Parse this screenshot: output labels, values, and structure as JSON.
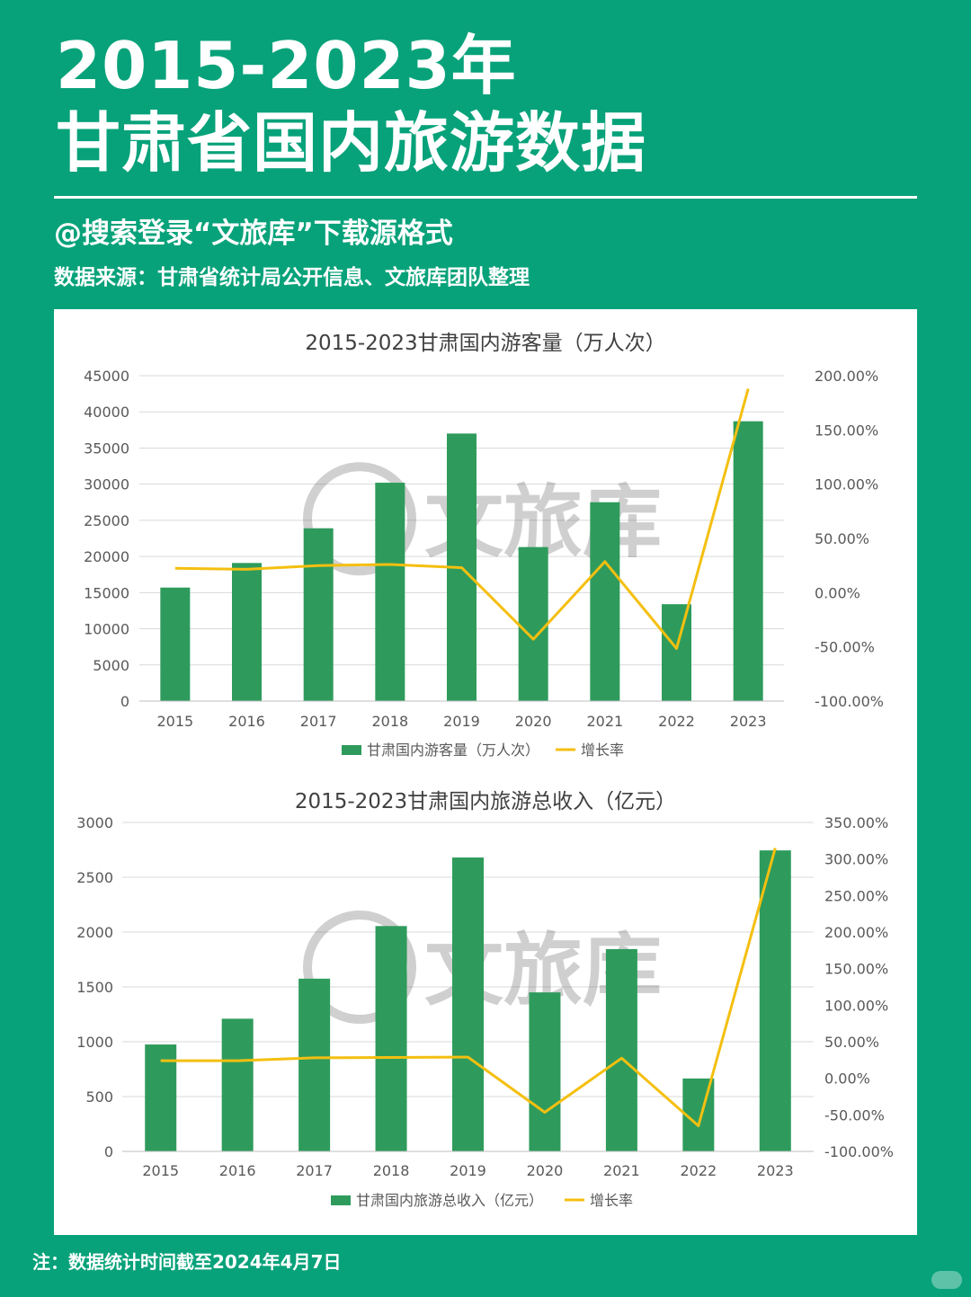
{
  "header": {
    "title_line1": "2015-2023年",
    "title_line2": "甘肃省国内旅游数据",
    "subtitle": "@搜索登录“文旅库”下载源格式",
    "source": "数据来源：甘肃省统计局公开信息、文旅库团队整理"
  },
  "footer": {
    "note": "注：数据统计时间截至2024年4月7日"
  },
  "watermark": {
    "text": "文旅库"
  },
  "colors": {
    "background": "#07a27a",
    "bar": "#2e9b5c",
    "line": "#f4bf10",
    "grid": "#d9d9d9"
  },
  "chart_data": [
    {
      "type": "bar",
      "title": "2015-2023甘肃国内游客量（万人次）",
      "categories": [
        "2015",
        "2016",
        "2017",
        "2018",
        "2019",
        "2020",
        "2021",
        "2022",
        "2023"
      ],
      "series": [
        {
          "name": "甘肃国内游客量（万人次）",
          "kind": "bar",
          "axis": "left",
          "values": [
            15700,
            19100,
            23900,
            30200,
            37000,
            21300,
            27500,
            13400,
            38700
          ]
        },
        {
          "name": "增长率",
          "kind": "line",
          "axis": "right",
          "values": [
            22.5,
            21.5,
            25.0,
            26.0,
            23.0,
            -43.0,
            28.5,
            -51.5,
            188.0
          ]
        }
      ],
      "ylim": [
        0,
        45000
      ],
      "yticks": [
        "45000",
        "40000",
        "35000",
        "30000",
        "25000",
        "20000",
        "15000",
        "10000",
        "5000",
        "0"
      ],
      "y2lim": [
        -100,
        200
      ],
      "y2ticks": [
        "200.00%",
        "150.00%",
        "100.00%",
        "50.00%",
        "0.00%",
        "-50.00%",
        "-100.00%"
      ],
      "legend": "bottom",
      "grid": true
    },
    {
      "type": "bar",
      "title": "2015-2023甘肃国内旅游总收入（亿元）",
      "categories": [
        "2015",
        "2016",
        "2017",
        "2018",
        "2019",
        "2020",
        "2021",
        "2022",
        "2023"
      ],
      "series": [
        {
          "name": "甘肃国内旅游总收入（亿元）",
          "kind": "bar",
          "axis": "left",
          "values": [
            975,
            1210,
            1575,
            2055,
            2680,
            1450,
            1845,
            665,
            2745
          ]
        },
        {
          "name": "增长率",
          "kind": "line",
          "axis": "right",
          "values": [
            24.0,
            24.0,
            28.0,
            28.5,
            29.0,
            -46.5,
            27.5,
            -65.0,
            315.0
          ]
        }
      ],
      "ylim": [
        0,
        3000
      ],
      "yticks": [
        "3000",
        "2500",
        "2000",
        "1500",
        "1000",
        "500",
        "0"
      ],
      "y2lim": [
        -100,
        350
      ],
      "y2ticks": [
        "350.00%",
        "300.00%",
        "250.00%",
        "200.00%",
        "150.00%",
        "100.00%",
        "50.00%",
        "0.00%",
        "-50.00%",
        "-100.00%"
      ],
      "legend": "bottom",
      "grid": true
    }
  ]
}
